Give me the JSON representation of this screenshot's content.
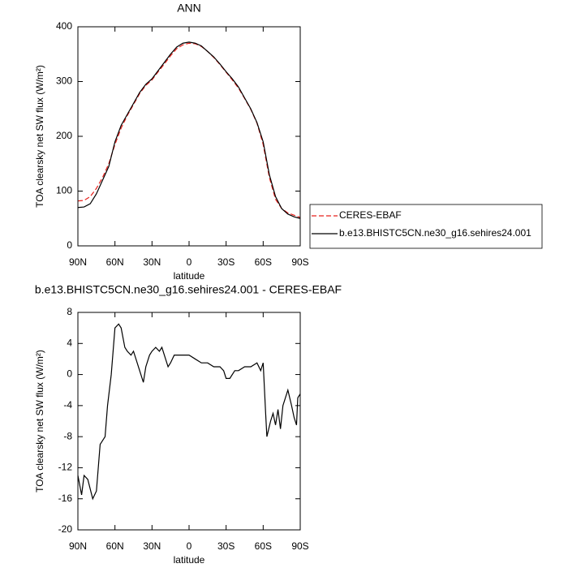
{
  "chart_data": [
    {
      "type": "line",
      "title": "ANN",
      "xlabel": "latitude",
      "ylabel": "TOA clearsky net SW flux (W/m²)",
      "x": [
        90,
        85,
        80,
        75,
        70,
        65,
        60,
        55,
        50,
        45,
        40,
        35,
        30,
        25,
        20,
        15,
        10,
        5,
        0,
        -5,
        -10,
        -15,
        -20,
        -25,
        -30,
        -35,
        -40,
        -45,
        -50,
        -55,
        -60,
        -65,
        -70,
        -75,
        -80,
        -85,
        -90
      ],
      "series": [
        {
          "name": "CERES-EBAF",
          "color": "#e8211c",
          "dashed": true,
          "values": [
            82,
            83,
            90,
            105,
            125,
            150,
            185,
            215,
            238,
            258,
            278,
            293,
            303,
            318,
            332,
            347,
            360,
            367,
            370,
            369,
            364,
            355,
            344,
            331,
            317,
            303,
            288,
            269,
            249,
            224,
            185,
            125,
            85,
            68,
            60,
            56,
            52
          ]
        },
        {
          "name": "b.e13.BHISTC5CN.ne30_g16.sehires24.001",
          "color": "#000000",
          "dashed": false,
          "values": [
            70,
            71,
            77,
            95,
            120,
            145,
            190,
            220,
            240,
            260,
            280,
            295,
            305,
            320,
            335,
            350,
            363,
            370,
            372,
            370,
            365,
            355,
            345,
            332,
            318,
            305,
            290,
            270,
            250,
            225,
            190,
            130,
            90,
            68,
            58,
            53,
            50
          ]
        }
      ],
      "xlim": [
        90,
        -90
      ],
      "xticks": [
        {
          "value": 90,
          "label": "90N"
        },
        {
          "value": 60,
          "label": "60N"
        },
        {
          "value": 30,
          "label": "30N"
        },
        0,
        {
          "value": -30,
          "label": "30S"
        },
        {
          "value": -60,
          "label": "60S"
        },
        {
          "value": -90,
          "label": "90S"
        }
      ],
      "ylim": [
        0,
        400
      ],
      "yticks": [
        0,
        100,
        200,
        300,
        400
      ],
      "legend": "right"
    },
    {
      "type": "line",
      "title": "b.e13.BHISTC5CN.ne30_g16.sehires24.001 - CERES-EBAF",
      "xlabel": "latitude",
      "ylabel": "TOA clearsky net SW flux (W/m²)",
      "x": [
        90,
        87,
        85,
        82,
        78,
        75,
        72,
        70,
        68,
        66,
        63,
        60,
        57,
        55,
        52,
        50,
        47,
        45,
        42,
        40,
        37,
        35,
        32,
        30,
        27,
        24,
        22,
        20,
        17,
        15,
        12,
        10,
        5,
        0,
        -5,
        -10,
        -15,
        -20,
        -25,
        -28,
        -30,
        -33,
        -37,
        -40,
        -45,
        -50,
        -55,
        -58,
        -60,
        -62,
        -63,
        -66,
        -68,
        -70,
        -72,
        -74,
        -76,
        -78,
        -80,
        -83,
        -85,
        -87,
        -88,
        -90
      ],
      "series": [
        {
          "name": "b.e13.BHISTC5CN.ne30_g16.sehires24.001 - CERES-EBAF",
          "color": "#000000",
          "dashed": false,
          "values": [
            -13,
            -15.5,
            -13,
            -13.5,
            -16,
            -15,
            -9,
            -8.5,
            -8,
            -4,
            0,
            6,
            6.5,
            6,
            3.5,
            3,
            2.5,
            3,
            1.5,
            0.5,
            -1,
            1,
            2.5,
            3,
            3.5,
            3,
            3.5,
            2.5,
            1,
            1.5,
            2.5,
            2.5,
            2.5,
            2.5,
            2,
            1.5,
            1.5,
            1,
            1,
            0.5,
            -0.5,
            -0.5,
            0.5,
            0.5,
            1,
            1,
            1.5,
            0.5,
            1.5,
            -5,
            -8,
            -6,
            -5,
            -6.5,
            -4.5,
            -7,
            -4,
            -3,
            -2,
            -4,
            -5.5,
            -6.5,
            -3,
            -2.5
          ]
        }
      ],
      "xlim": [
        90,
        -90
      ],
      "xticks": [
        {
          "value": 90,
          "label": "90N"
        },
        {
          "value": 60,
          "label": "60N"
        },
        {
          "value": 30,
          "label": "30N"
        },
        0,
        {
          "value": -30,
          "label": "30S"
        },
        {
          "value": -60,
          "label": "60S"
        },
        {
          "value": -90,
          "label": "90S"
        }
      ],
      "ylim": [
        -20,
        8
      ],
      "yticks": [
        -20,
        -16,
        -12,
        -8,
        -4,
        0,
        4,
        8
      ]
    }
  ]
}
